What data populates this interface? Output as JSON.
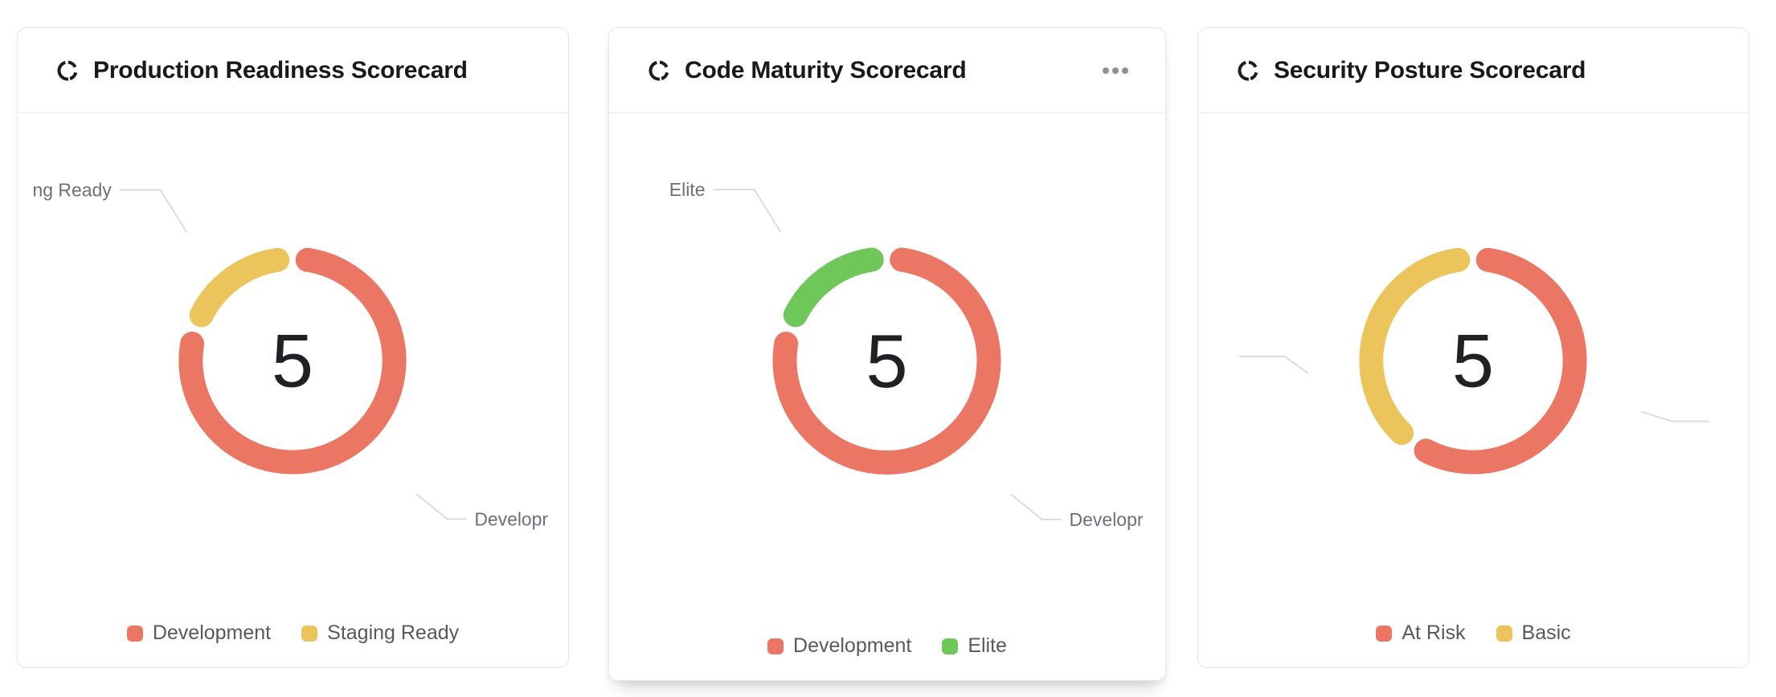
{
  "icons": {
    "card_header": "donut-chart-icon",
    "card_menu": "ellipsis-icon"
  },
  "colors": {
    "development": "#ea7663",
    "staging_ready": "#ebc55c",
    "elite": "#6fc75a",
    "at_risk": "#ea7663",
    "basic": "#ebc55c",
    "leader_line": "#d7d9dc",
    "callout_text": "#6e7079",
    "legend_text": "#56595e",
    "title_text": "#17191d",
    "center_value_text": "#1f2125",
    "card_border": "#e4e5e8"
  },
  "chart_data": [
    {
      "type": "pie",
      "subtype": "donut",
      "title": "Production Readiness Scorecard",
      "center_value": "5",
      "total": 5,
      "series": [
        {
          "name": "Development",
          "value": 4,
          "color": "#ea7663"
        },
        {
          "name": "Staging Ready",
          "value": 1,
          "color": "#ebc55c"
        }
      ],
      "legend_position": "bottom-center",
      "callouts": [
        {
          "text": "ng Ready",
          "side": "left",
          "note": "truncated label of Staging Ready"
        },
        {
          "text": "Developr",
          "side": "right",
          "note": "truncated label of Development"
        }
      ],
      "has_menu": false
    },
    {
      "type": "pie",
      "subtype": "donut",
      "title": "Code Maturity Scorecard",
      "center_value": "5",
      "total": 5,
      "series": [
        {
          "name": "Development",
          "value": 4,
          "color": "#ea7663"
        },
        {
          "name": "Elite",
          "value": 1,
          "color": "#6fc75a"
        }
      ],
      "legend_position": "bottom-center",
      "callouts": [
        {
          "text": "Elite",
          "side": "left"
        },
        {
          "text": "Developr",
          "side": "right",
          "note": "truncated label of Development"
        }
      ],
      "has_menu": true
    },
    {
      "type": "pie",
      "subtype": "donut",
      "title": "Security Posture Scorecard",
      "center_value": "5",
      "total": 5,
      "series": [
        {
          "name": "At Risk",
          "value": 3,
          "color": "#ea7663"
        },
        {
          "name": "Basic",
          "value": 2,
          "color": "#ebc55c"
        }
      ],
      "legend_position": "bottom-center",
      "callouts": [
        {
          "text": "",
          "side": "left",
          "note": "label clipped, leader line only"
        },
        {
          "text": "",
          "side": "right",
          "note": "label clipped, leader line only"
        }
      ],
      "has_menu": false
    }
  ]
}
